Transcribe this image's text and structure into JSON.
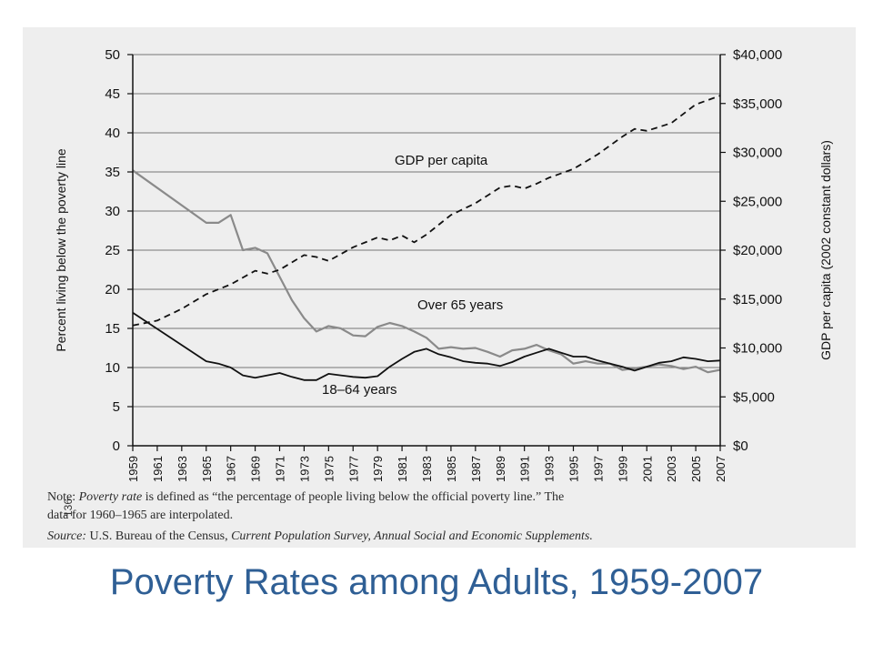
{
  "slide": {
    "title": "Poverty Rates among Adults, 1959-2007"
  },
  "notes": {
    "note_label": "Note:",
    "note_term": "Poverty rate",
    "note_text": " is defined as “the percentage of people living below the official poverty line.” The",
    "note_line2": "data for 1960–1965 are interpolated.",
    "source_label": "Source:",
    "source_pre": " U.S. Bureau of the Census, ",
    "source_title": "Current Population Survey, Annual Social and Economic Supplements.",
    "page_number": "136"
  },
  "chart_data": {
    "type": "line",
    "ylabel": "Percent living below the poverty line",
    "y2label": "GDP per capita (2002 constant dollars)",
    "ylim": [
      0,
      50
    ],
    "y2lim": [
      0,
      40000
    ],
    "xlim": [
      1959,
      2007
    ],
    "yticks": [
      "0",
      "5",
      "10",
      "15",
      "20",
      "25",
      "30",
      "35",
      "40",
      "45",
      "50"
    ],
    "y2ticks": [
      "$0",
      "$5,000",
      "$10,000",
      "$15,000",
      "$20,000",
      "$25,000",
      "$30,000",
      "$35,000",
      "$40,000"
    ],
    "xticks": [
      "1959",
      "1961",
      "1963",
      "1965",
      "1967",
      "1969",
      "1971",
      "1973",
      "1975",
      "1977",
      "1979",
      "1981",
      "1983",
      "1985",
      "1987",
      "1989",
      "1991",
      "1993",
      "1995",
      "1997",
      "1999",
      "2001",
      "2003",
      "2005",
      "2007"
    ],
    "grid": true,
    "series": [
      {
        "name": "Over 65 years",
        "axis": "left",
        "style": "solid-gray",
        "x": [
          1959,
          1965,
          1966,
          1967,
          1968,
          1969,
          1970,
          1971,
          1972,
          1973,
          1974,
          1975,
          1976,
          1977,
          1978,
          1979,
          1980,
          1981,
          1982,
          1983,
          1984,
          1985,
          1986,
          1987,
          1988,
          1989,
          1990,
          1991,
          1992,
          1993,
          1994,
          1995,
          1996,
          1997,
          1998,
          1999,
          2000,
          2001,
          2002,
          2003,
          2004,
          2005,
          2006,
          2007
        ],
        "values": [
          35.2,
          28.5,
          28.5,
          29.5,
          25.0,
          25.3,
          24.6,
          21.6,
          18.6,
          16.3,
          14.6,
          15.3,
          15.0,
          14.1,
          14.0,
          15.2,
          15.7,
          15.3,
          14.6,
          13.8,
          12.4,
          12.6,
          12.4,
          12.5,
          12.0,
          11.4,
          12.2,
          12.4,
          12.9,
          12.2,
          11.7,
          10.5,
          10.8,
          10.5,
          10.5,
          9.7,
          9.9,
          10.1,
          10.4,
          10.2,
          9.8,
          10.1,
          9.4,
          9.7
        ]
      },
      {
        "name": "18–64 years",
        "axis": "left",
        "style": "solid-black",
        "x": [
          1959,
          1965,
          1966,
          1967,
          1968,
          1969,
          1970,
          1971,
          1972,
          1973,
          1974,
          1975,
          1976,
          1977,
          1978,
          1979,
          1980,
          1981,
          1982,
          1983,
          1984,
          1985,
          1986,
          1987,
          1988,
          1989,
          1990,
          1991,
          1992,
          1993,
          1994,
          1995,
          1996,
          1997,
          1998,
          1999,
          2000,
          2001,
          2002,
          2003,
          2004,
          2005,
          2006,
          2007
        ],
        "values": [
          17.0,
          10.8,
          10.5,
          10.0,
          9.0,
          8.7,
          9.0,
          9.3,
          8.8,
          8.4,
          8.4,
          9.2,
          9.0,
          8.8,
          8.7,
          8.9,
          10.1,
          11.1,
          12.0,
          12.4,
          11.7,
          11.3,
          10.8,
          10.6,
          10.5,
          10.2,
          10.7,
          11.4,
          11.9,
          12.4,
          11.9,
          11.4,
          11.4,
          10.9,
          10.5,
          10.1,
          9.6,
          10.1,
          10.6,
          10.8,
          11.3,
          11.1,
          10.8,
          10.9
        ]
      },
      {
        "name": "GDP per capita",
        "axis": "right",
        "style": "dashed-black",
        "x": [
          1959,
          1961,
          1963,
          1965,
          1967,
          1969,
          1970,
          1971,
          1973,
          1974,
          1975,
          1977,
          1979,
          1980,
          1981,
          1982,
          1983,
          1985,
          1987,
          1989,
          1990,
          1991,
          1992,
          1993,
          1995,
          1997,
          1999,
          2000,
          2001,
          2002,
          2003,
          2005,
          2007
        ],
        "values": [
          12300,
          12800,
          14000,
          15500,
          16500,
          17900,
          17600,
          18000,
          19500,
          19300,
          18900,
          20300,
          21300,
          21000,
          21500,
          20800,
          21600,
          23600,
          24800,
          26400,
          26600,
          26300,
          26800,
          27400,
          28300,
          29800,
          31600,
          32400,
          32200,
          32600,
          33000,
          34900,
          35800
        ]
      }
    ],
    "annotations": [
      "GDP per capita",
      "Over 65 years",
      "18–64 years"
    ]
  }
}
